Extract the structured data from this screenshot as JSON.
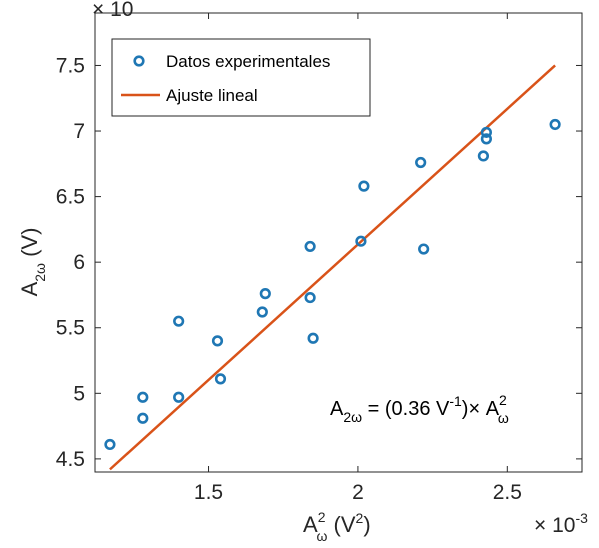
{
  "chart_data": {
    "type": "scatter",
    "xlim": [
      0.00112,
      0.00275
    ],
    "ylim": [
      4.4,
      7.9
    ],
    "x_tick_values": [
      0.0015,
      0.002,
      0.0025
    ],
    "x_tick_labels": [
      "1.5",
      "2",
      "2.5"
    ],
    "y_tick_values": [
      4.5,
      5,
      5.5,
      6,
      6.5,
      7,
      7.5
    ],
    "y_tick_labels": [
      "4.5",
      "5",
      "5.5",
      "6",
      "6.5",
      "7",
      "7.5"
    ],
    "x_exponent_label": "× 10",
    "x_exponent_power": "-3",
    "y_exponent_label": "× 10",
    "xlabel": {
      "base": "A",
      "sub": "ω",
      "sup": "2",
      "rest": " (V",
      "rest_sup": "2",
      "rest_end": ")"
    },
    "ylabel": {
      "base": "A",
      "sub": "2ω",
      "rest": " (V)"
    },
    "grid": false,
    "legend_position": "top-left",
    "series": [
      {
        "name": "Datos experimentales",
        "kind": "markers",
        "color": "#1f77b4",
        "points": [
          [
            0.00117,
            4.61
          ],
          [
            0.00128,
            4.81
          ],
          [
            0.00128,
            4.97
          ],
          [
            0.0014,
            4.97
          ],
          [
            0.0014,
            5.55
          ],
          [
            0.00153,
            5.4
          ],
          [
            0.00154,
            5.11
          ],
          [
            0.00168,
            5.62
          ],
          [
            0.00169,
            5.76
          ],
          [
            0.00184,
            6.12
          ],
          [
            0.00184,
            5.73
          ],
          [
            0.00185,
            5.42
          ],
          [
            0.00201,
            6.16
          ],
          [
            0.00202,
            6.58
          ],
          [
            0.00221,
            6.76
          ],
          [
            0.00222,
            6.1
          ],
          [
            0.00242,
            6.81
          ],
          [
            0.00243,
            6.94
          ],
          [
            0.00243,
            6.99
          ],
          [
            0.00266,
            7.05
          ]
        ]
      },
      {
        "name": "Ajuste lineal",
        "kind": "line",
        "color": "#d95319",
        "points": [
          [
            0.00117,
            4.42
          ],
          [
            0.00266,
            7.5
          ]
        ]
      }
    ],
    "annotation": {
      "lhs": "A",
      "lhs_sub": "2ω",
      "mid": " = (0.36 V",
      "mid_sup": "-1",
      "rhs": ")× A",
      "rhs_sup": "2",
      "rhs_sub": "ω"
    }
  }
}
